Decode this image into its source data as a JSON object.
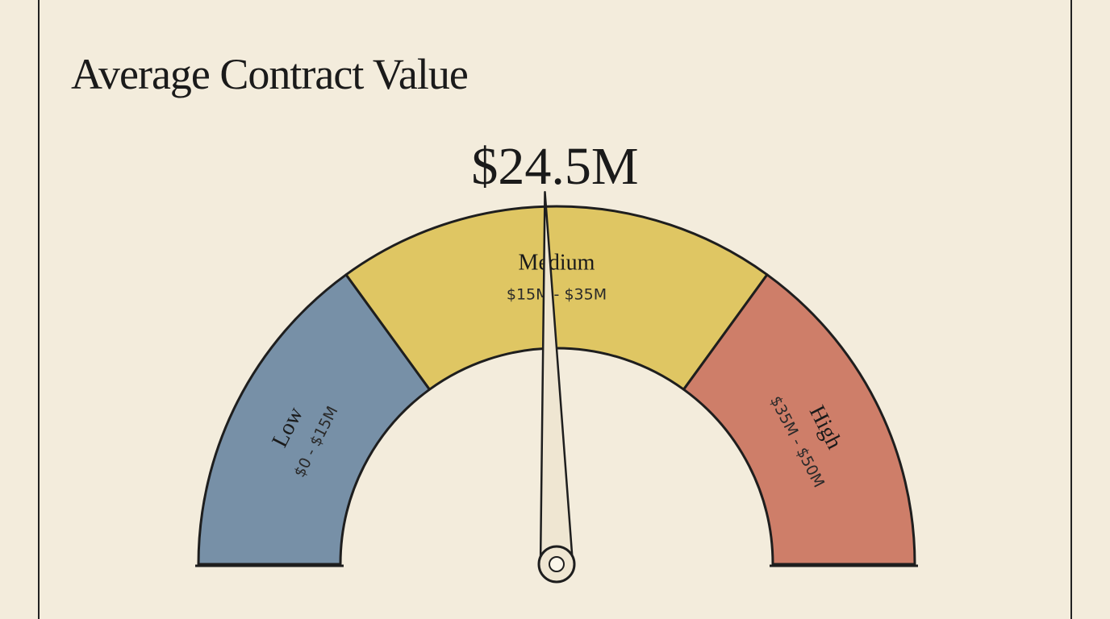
{
  "chart_data": {
    "type": "gauge",
    "title": "Average Contract Value",
    "value": 24.5,
    "value_label": "$24.5M",
    "bands": [
      {
        "name": "Low",
        "label": "$0 - $15M",
        "from": 0,
        "to": 15,
        "color": "#60809e"
      },
      {
        "name": "Medium",
        "label": "$15M - $35M",
        "from": 15,
        "to": 35,
        "color": "#dbc04e"
      },
      {
        "name": "High",
        "label": "$35M - $50M",
        "from": 35,
        "to": 50,
        "color": "#c76b55"
      }
    ]
  }
}
